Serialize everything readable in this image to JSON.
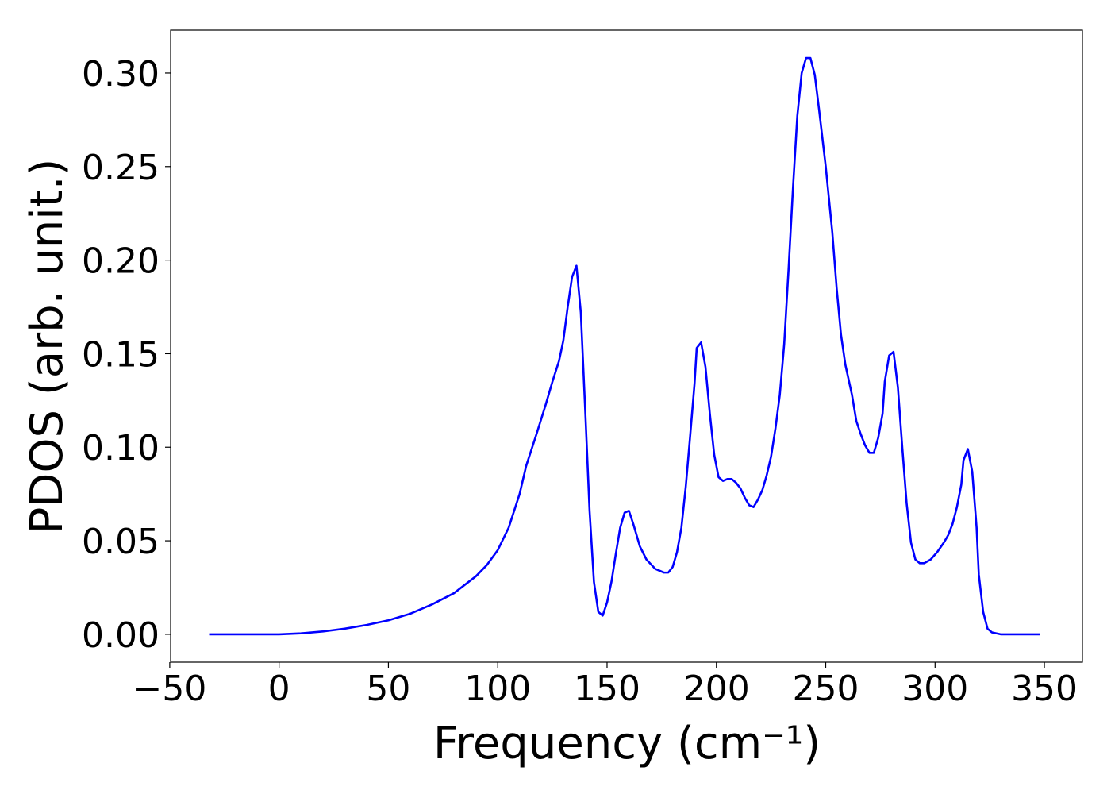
{
  "chart_data": {
    "type": "line",
    "x_label": "Frequency (cm⁻¹)",
    "y_label": "PDOS (arb. unit.)",
    "xlim": [
      -49.6,
      367.4
    ],
    "ylim": [
      -0.0149,
      0.3229
    ],
    "xticks": [
      {
        "value": -50,
        "label": "−50"
      },
      0,
      50,
      100,
      150,
      200,
      250,
      300,
      350
    ],
    "yticks": [
      {
        "value": 0,
        "label": "0.00"
      },
      {
        "value": 0.05,
        "label": "0.05"
      },
      {
        "value": 0.1,
        "label": "0.10"
      },
      {
        "value": 0.15,
        "label": "0.15"
      },
      {
        "value": 0.2,
        "label": "0.20"
      },
      {
        "value": 0.25,
        "label": "0.25"
      },
      {
        "value": 0.3,
        "label": "0.30"
      }
    ],
    "series": [
      {
        "color": "#0000ff",
        "x": [
          -32,
          0,
          10,
          20,
          30,
          40,
          50,
          60,
          70,
          80,
          90,
          95,
          100,
          105,
          110,
          113,
          118,
          122,
          125,
          128,
          130,
          132,
          134,
          136,
          138,
          140,
          142,
          144,
          146,
          148,
          150,
          152,
          154,
          156,
          158,
          160,
          162,
          165,
          168,
          172,
          176,
          178,
          180,
          182,
          184,
          186,
          188,
          190,
          191,
          193,
          195,
          197,
          199,
          201,
          203,
          205,
          207,
          209,
          211,
          213,
          215,
          217,
          219,
          221,
          223,
          225,
          227,
          229,
          231,
          233,
          235,
          237,
          239,
          241,
          243,
          245,
          247,
          250,
          253,
          255,
          257,
          259,
          262,
          264,
          266,
          268,
          270,
          272,
          274,
          276,
          277,
          279,
          281,
          283,
          285,
          287,
          289,
          291,
          293,
          295,
          298,
          301,
          304,
          306,
          308,
          310,
          312,
          313,
          315,
          317,
          319,
          320,
          322,
          324,
          326,
          330,
          348
        ],
        "values": [
          0,
          0,
          0.0005,
          0.0015,
          0.003,
          0.005,
          0.0075,
          0.011,
          0.016,
          0.022,
          0.031,
          0.037,
          0.045,
          0.057,
          0.075,
          0.09,
          0.108,
          0.123,
          0.135,
          0.146,
          0.157,
          0.175,
          0.191,
          0.197,
          0.172,
          0.12,
          0.066,
          0.028,
          0.012,
          0.01,
          0.017,
          0.028,
          0.043,
          0.057,
          0.065,
          0.066,
          0.059,
          0.047,
          0.04,
          0.035,
          0.033,
          0.033,
          0.036,
          0.044,
          0.057,
          0.079,
          0.106,
          0.134,
          0.153,
          0.156,
          0.143,
          0.118,
          0.096,
          0.084,
          0.082,
          0.083,
          0.083,
          0.081,
          0.078,
          0.073,
          0.069,
          0.068,
          0.072,
          0.077,
          0.085,
          0.095,
          0.11,
          0.128,
          0.155,
          0.195,
          0.238,
          0.277,
          0.3,
          0.308,
          0.308,
          0.299,
          0.28,
          0.25,
          0.215,
          0.185,
          0.16,
          0.144,
          0.128,
          0.114,
          0.107,
          0.101,
          0.097,
          0.097,
          0.105,
          0.118,
          0.135,
          0.149,
          0.151,
          0.132,
          0.1,
          0.07,
          0.049,
          0.04,
          0.038,
          0.038,
          0.04,
          0.044,
          0.049,
          0.053,
          0.059,
          0.068,
          0.08,
          0.093,
          0.099,
          0.087,
          0.057,
          0.032,
          0.012,
          0.003,
          0.001,
          0,
          0
        ]
      }
    ]
  }
}
